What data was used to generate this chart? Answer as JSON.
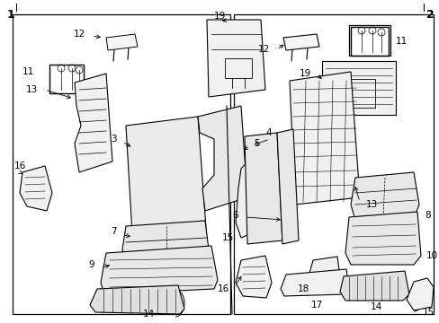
{
  "bg_color": "#ffffff",
  "fig_width": 4.89,
  "fig_height": 3.6,
  "dpi": 100,
  "image_b64": ""
}
